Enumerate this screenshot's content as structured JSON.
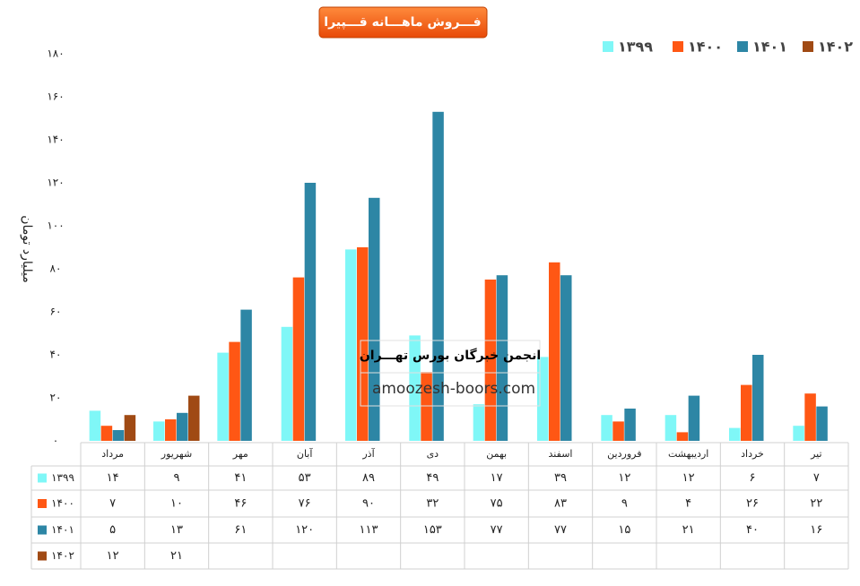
{
  "chart_data": {
    "type": "bar",
    "title": "فـــروش ماهـــانه قـــپیرا",
    "y_label": "میلیارد تومان",
    "categories": [
      "مرداد",
      "شهریور",
      "مهر",
      "آبان",
      "آذر",
      "دی",
      "بهمن",
      "اسفند",
      "فروردین",
      "اردیبهشت",
      "خرداد",
      "تیر"
    ],
    "series": [
      {
        "name": "۱۳۹۹",
        "color": "#7ff7f7",
        "values": [
          14,
          9,
          41,
          53,
          89,
          49,
          17,
          39,
          12,
          12,
          6,
          7
        ],
        "value_labels": [
          "۱۴",
          "۹",
          "۴۱",
          "۵۳",
          "۸۹",
          "۴۹",
          "۱۷",
          "۳۹",
          "۱۲",
          "۱۲",
          "۶",
          "۷"
        ]
      },
      {
        "name": "۱۴۰۰",
        "color": "#ff5714",
        "values": [
          7,
          10,
          46,
          76,
          90,
          32,
          75,
          83,
          9,
          4,
          26,
          22
        ],
        "value_labels": [
          "۷",
          "۱۰",
          "۴۶",
          "۷۶",
          "۹۰",
          "۳۲",
          "۷۵",
          "۸۳",
          "۹",
          "۴",
          "۲۶",
          "۲۲"
        ]
      },
      {
        "name": "۱۴۰۱",
        "color": "#2d86a5",
        "values": [
          5,
          13,
          61,
          120,
          113,
          153,
          77,
          77,
          15,
          21,
          40,
          16
        ],
        "value_labels": [
          "۵",
          "۱۳",
          "۶۱",
          "۱۲۰",
          "۱۱۳",
          "۱۵۳",
          "۷۷",
          "۷۷",
          "۱۵",
          "۲۱",
          "۴۰",
          "۱۶"
        ]
      },
      {
        "name": "۱۴۰۲",
        "color": "#a04a14",
        "values": [
          12,
          21,
          null,
          null,
          null,
          null,
          null,
          null,
          null,
          null,
          null,
          null
        ],
        "value_labels": [
          "۱۲",
          "۲۱",
          null,
          null,
          null,
          null,
          null,
          null,
          null,
          null,
          null,
          null
        ]
      }
    ],
    "ylim": [
      0,
      180
    ],
    "yticks": [
      {
        "value": 0,
        "label": "۰"
      },
      {
        "value": 20,
        "label": "۲۰"
      },
      {
        "value": 40,
        "label": "۴۰"
      },
      {
        "value": 60,
        "label": "۶۰"
      },
      {
        "value": 80,
        "label": "۸۰"
      },
      {
        "value": 100,
        "label": "۱۰۰"
      },
      {
        "value": 120,
        "label": "۱۲۰"
      },
      {
        "value": 140,
        "label": "۱۴۰"
      },
      {
        "value": 160,
        "label": "۱۶۰"
      },
      {
        "value": 180,
        "label": "۱۸۰"
      }
    ],
    "grid": false,
    "legend": "top-right"
  },
  "watermark": {
    "title": "انجمن خبرگان بورس تهـــران",
    "url": "amoozesh-boors.com"
  }
}
